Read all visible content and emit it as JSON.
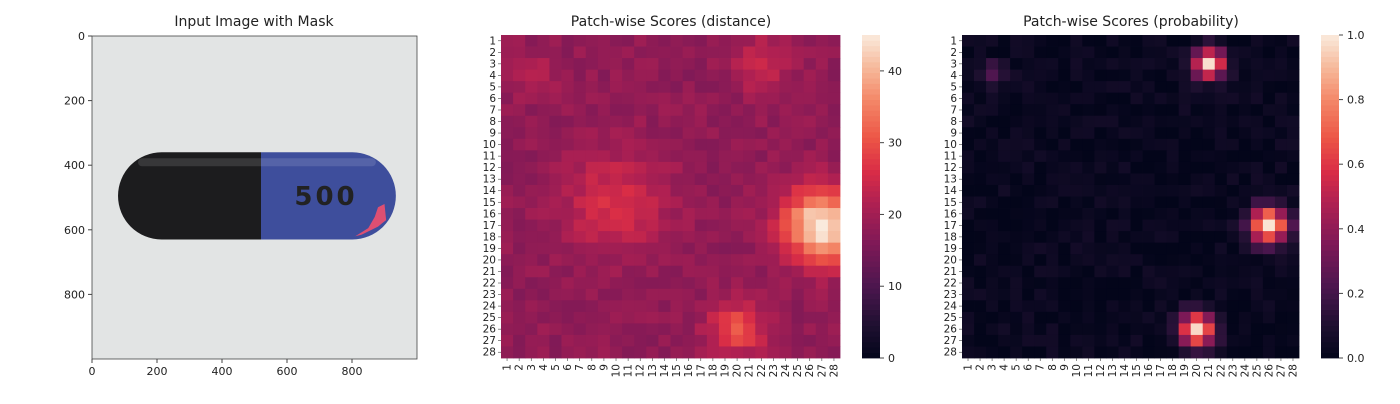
{
  "panels": {
    "image": {
      "title": "Input Image with Mask",
      "pill_text": "500"
    }
  },
  "chart_data": [
    {
      "type": "image",
      "title": "Input Image with Mask",
      "xlim": [
        0,
        1000
      ],
      "ylim": [
        1000,
        0
      ],
      "xticks": [
        0,
        200,
        400,
        600,
        800
      ],
      "yticks": [
        0,
        200,
        400,
        600,
        800
      ],
      "content": "capsule pill, black cap on left, blue body on right printed 500, red defect mask at right end",
      "colors": {
        "background": "#e2e4e4",
        "cap": "#1c1c1e",
        "body": "#3e4e9c",
        "mask": "#f0506e"
      }
    },
    {
      "type": "heatmap",
      "title": "Patch-wise Scores (distance)",
      "rows": [
        "1",
        "2",
        "3",
        "4",
        "5",
        "6",
        "7",
        "8",
        "9",
        "10",
        "11",
        "12",
        "13",
        "14",
        "15",
        "16",
        "17",
        "18",
        "19",
        "20",
        "21",
        "22",
        "23",
        "24",
        "25",
        "26",
        "27",
        "28"
      ],
      "cols": [
        "1",
        "2",
        "3",
        "4",
        "5",
        "6",
        "7",
        "8",
        "9",
        "10",
        "11",
        "12",
        "13",
        "14",
        "15",
        "16",
        "17",
        "18",
        "19",
        "20",
        "21",
        "22",
        "23",
        "24",
        "25",
        "26",
        "27",
        "28"
      ],
      "colorbar": {
        "min": 0,
        "max": 45,
        "ticks": [
          0,
          10,
          20,
          30,
          40
        ]
      },
      "base_value": 18,
      "hotspots": [
        {
          "row": 17,
          "col": 27,
          "value": 45,
          "spread": 2.2
        },
        {
          "row": 26,
          "col": 20,
          "value": 30,
          "spread": 1.6
        },
        {
          "row": 15,
          "col": 10,
          "value": 26,
          "spread": 3.0
        },
        {
          "row": 3,
          "col": 22,
          "value": 25,
          "spread": 1.6
        },
        {
          "row": 4,
          "col": 3,
          "value": 22,
          "spread": 1.4
        }
      ]
    },
    {
      "type": "heatmap",
      "title": "Patch-wise Scores (probability)",
      "rows": [
        "1",
        "2",
        "3",
        "4",
        "5",
        "6",
        "7",
        "8",
        "9",
        "10",
        "11",
        "12",
        "13",
        "14",
        "15",
        "16",
        "17",
        "18",
        "19",
        "20",
        "21",
        "22",
        "23",
        "24",
        "25",
        "26",
        "27",
        "28"
      ],
      "cols": [
        "1",
        "2",
        "3",
        "4",
        "5",
        "6",
        "7",
        "8",
        "9",
        "10",
        "11",
        "12",
        "13",
        "14",
        "15",
        "16",
        "17",
        "18",
        "19",
        "20",
        "21",
        "22",
        "23",
        "24",
        "25",
        "26",
        "27",
        "28"
      ],
      "colorbar": {
        "min": 0,
        "max": 1.0,
        "ticks": [
          0.0,
          0.2,
          0.4,
          0.6,
          0.8,
          1.0
        ]
      },
      "base_value": 0.02,
      "hotspots": [
        {
          "row": 17,
          "col": 26,
          "value": 1.0,
          "spread": 1.1
        },
        {
          "row": 26,
          "col": 20,
          "value": 1.0,
          "spread": 1.0
        },
        {
          "row": 3,
          "col": 21,
          "value": 0.95,
          "spread": 0.9
        },
        {
          "row": 4,
          "col": 3,
          "value": 0.25,
          "spread": 0.8
        }
      ]
    }
  ]
}
